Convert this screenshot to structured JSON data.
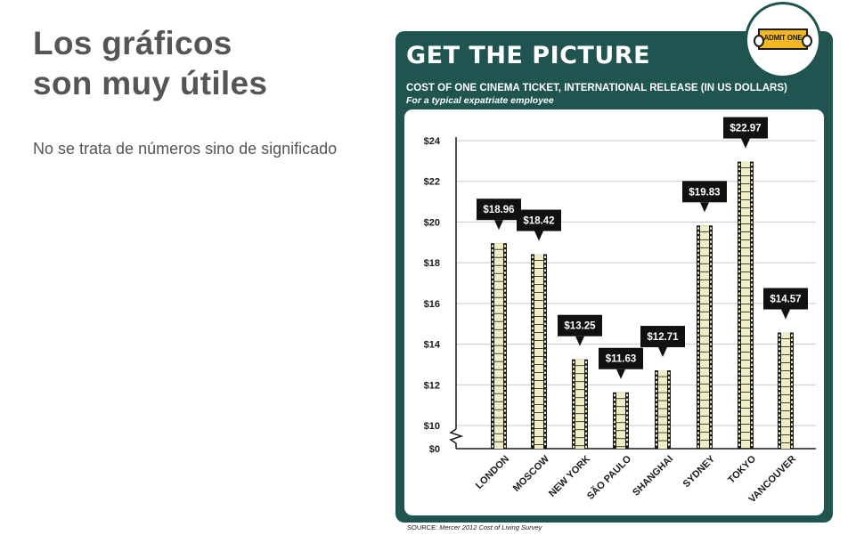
{
  "slide": {
    "title_line1": "Los gráficos",
    "title_line2": "son muy útiles",
    "subtitle": "No se trata de números sino de significado"
  },
  "infographic": {
    "heading": "GET THE PICTURE",
    "badge_text": "ADMIT ONE",
    "badge_icon": "ticket-icon",
    "source_prefix": "SOURCE:",
    "source_text": "Mercer 2012 Cost of Living Survey",
    "colors": {
      "panel": "#1f5450",
      "film_strip": "#f0eec6",
      "film_border": "#1a1a1a",
      "ticket": "#f2b822"
    }
  },
  "chart_data": {
    "type": "bar",
    "title": "COST OF ONE CINEMA TICKET, INTERNATIONAL RELEASE (IN US DOLLARS)",
    "subtitle": "For a typical expatriate employee",
    "categories": [
      "LONDON",
      "MOSCOW",
      "NEW YORK",
      "SÃO PAULO",
      "SHANGHAI",
      "SYDNEY",
      "TOKYO",
      "VANCOUVER"
    ],
    "values": [
      18.96,
      18.42,
      13.25,
      11.63,
      12.71,
      19.83,
      22.97,
      14.57
    ],
    "value_labels": [
      "$18.96",
      "$18.42",
      "$13.25",
      "$11.63",
      "$12.71",
      "$19.83",
      "$22.97",
      "$14.57"
    ],
    "y_ticks": [
      0,
      10,
      12,
      14,
      16,
      18,
      20,
      22,
      24
    ],
    "y_tick_labels": [
      "$0",
      "$10",
      "$12",
      "$14",
      "$16",
      "$18",
      "$20",
      "$22",
      "$24"
    ],
    "ylim": [
      0,
      24
    ],
    "axis_break": "0-10",
    "grid": true,
    "xlabel": "",
    "ylabel": ""
  }
}
